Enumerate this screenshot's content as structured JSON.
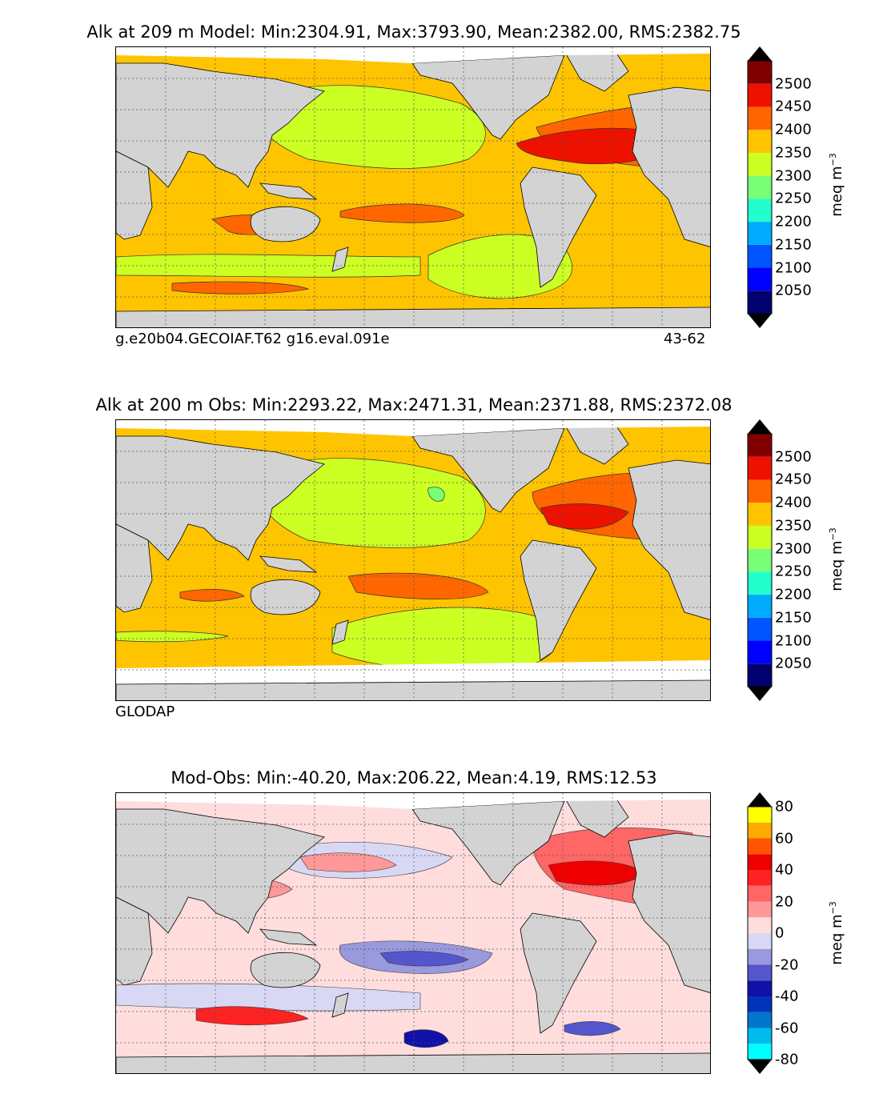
{
  "chart_data": [
    {
      "type": "heatmap",
      "title": "Alk at 209 m Model: Min:2304.91, Max:3793.90, Mean:2382.00, RMS:2382.75",
      "left_label": "g.e20b04.GECOIAF.T62 g16.eval.091e",
      "right_label": "43-62",
      "colorbar": {
        "label": "meq m",
        "label_sup": "−3",
        "ticks": [
          "2500",
          "2450",
          "2400",
          "2350",
          "2300",
          "2250",
          "2200",
          "2150",
          "2100",
          "2050"
        ],
        "levels": [
          2000,
          2050,
          2100,
          2150,
          2200,
          2250,
          2300,
          2350,
          2400,
          2450,
          2500,
          2550
        ],
        "colors": [
          "#00006e",
          "#0000ff",
          "#0055ff",
          "#00aaff",
          "#22ffcc",
          "#77ff77",
          "#ccff22",
          "#ffc400",
          "#ff6600",
          "#ee1100",
          "#800000"
        ],
        "extend": "both"
      },
      "stats": {
        "min": 2304.91,
        "max": 3793.9,
        "mean": 2382.0,
        "rms": 2382.75
      }
    },
    {
      "type": "heatmap",
      "title": "Alk at 200 m Obs: Min:2293.22, Max:2471.31, Mean:2371.88, RMS:2372.08",
      "left_label": "GLODAP",
      "right_label": "",
      "colorbar": {
        "label": "meq m",
        "label_sup": "−3",
        "ticks": [
          "2500",
          "2450",
          "2400",
          "2350",
          "2300",
          "2250",
          "2200",
          "2150",
          "2100",
          "2050"
        ],
        "levels": [
          2000,
          2050,
          2100,
          2150,
          2200,
          2250,
          2300,
          2350,
          2400,
          2450,
          2500,
          2550
        ],
        "colors": [
          "#00006e",
          "#0000ff",
          "#0055ff",
          "#00aaff",
          "#22ffcc",
          "#77ff77",
          "#ccff22",
          "#ffc400",
          "#ff6600",
          "#ee1100",
          "#800000"
        ],
        "extend": "both"
      },
      "stats": {
        "min": 2293.22,
        "max": 2471.31,
        "mean": 2371.88,
        "rms": 2372.08
      }
    },
    {
      "type": "heatmap",
      "title": "Mod-Obs: Min:-40.20, Max:206.22, Mean:4.19, RMS:12.53",
      "left_label": "",
      "right_label": "",
      "colorbar": {
        "label": "meq m",
        "label_sup": "−3",
        "ticks": [
          "80",
          "60",
          "40",
          "20",
          "0",
          "-20",
          "-40",
          "-60",
          "-80"
        ],
        "levels": [
          -80,
          -70,
          -60,
          -50,
          -40,
          -30,
          -20,
          -10,
          0,
          10,
          20,
          30,
          40,
          50,
          60,
          70,
          80
        ],
        "colors": [
          "#00ffff",
          "#00bbee",
          "#0077cc",
          "#0033bb",
          "#1111aa",
          "#5555cc",
          "#9999dd",
          "#d8d8f4",
          "#ffdddd",
          "#ff9999",
          "#ff6666",
          "#ff2222",
          "#ee0000",
          "#ff5500",
          "#ffaa00",
          "#ffff00"
        ],
        "extend": "both"
      },
      "stats": {
        "min": -40.2,
        "max": 206.22,
        "mean": 4.19,
        "rms": 12.53
      }
    }
  ]
}
